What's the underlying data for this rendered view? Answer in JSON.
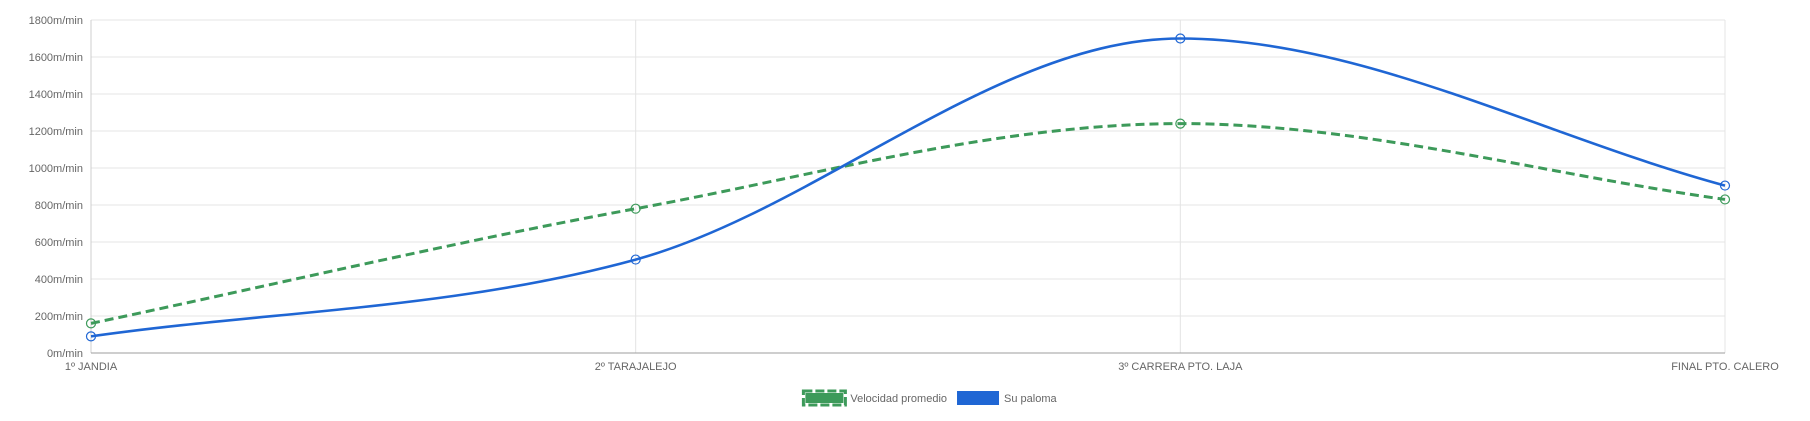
{
  "chart_data": {
    "type": "line",
    "categories": [
      "1º JANDIA",
      "2º  TARAJALEJO",
      "3º CARRERA PTO. LAJA",
      "FINAL PTO. CALERO"
    ],
    "series": [
      {
        "name": "Velocidad promedio",
        "values": [
          160,
          780,
          1240,
          830
        ],
        "color": "#3d9a5a",
        "style": "dashed"
      },
      {
        "name": "Su paloma",
        "values": [
          90,
          505,
          1700,
          905
        ],
        "color": "#1f66d4",
        "style": "solid"
      }
    ],
    "y_ticks": [
      "0m/min",
      "200m/min",
      "400m/min",
      "600m/min",
      "800m/min",
      "1000m/min",
      "1200m/min",
      "1400m/min",
      "1600m/min",
      "1800m/min"
    ],
    "ylim": [
      0,
      1800
    ],
    "grid": true,
    "legend_position": "bottom",
    "marker": "open-circle"
  }
}
